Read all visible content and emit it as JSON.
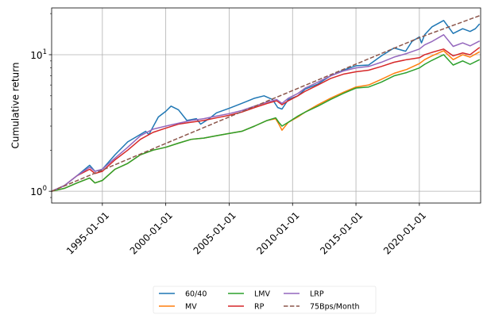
{
  "chart_data": {
    "type": "line",
    "ylabel": "Cumulative return",
    "y_scale": "log",
    "ylim": [
      0.82,
      22.0
    ],
    "xlim": [
      "1991-01-01",
      "2024-11-01"
    ],
    "grid": true,
    "legend_position": "below plot, centered, 3 columns",
    "x_ticks": [
      {
        "date": "1995-01-01",
        "label": "1995-01-01"
      },
      {
        "date": "2000-01-01",
        "label": "2000-01-01"
      },
      {
        "date": "2005-01-01",
        "label": "2005-01-01"
      },
      {
        "date": "2010-01-01",
        "label": "2010-01-01"
      },
      {
        "date": "2015-01-01",
        "label": "2015-01-01"
      },
      {
        "date": "2020-01-01",
        "label": "2020-01-01"
      }
    ],
    "y_ticks": [
      {
        "value": 1,
        "label": "10^0",
        "base": "10",
        "exp": "0"
      },
      {
        "value": 10,
        "label": "10^1",
        "base": "10",
        "exp": "1"
      }
    ],
    "series": [
      {
        "name": "60/40",
        "color": "#1f77b4",
        "dash": "solid",
        "points": [
          [
            "1991-01-01",
            1.0
          ],
          [
            "1992-01-01",
            1.1
          ],
          [
            "1993-01-01",
            1.3
          ],
          [
            "1994-01-01",
            1.55
          ],
          [
            "1994-06-01",
            1.4
          ],
          [
            "1995-01-01",
            1.45
          ],
          [
            "1996-01-01",
            1.85
          ],
          [
            "1997-01-01",
            2.3
          ],
          [
            "1997-09-01",
            2.5
          ],
          [
            "1998-06-01",
            2.75
          ],
          [
            "1998-09-01",
            2.6
          ],
          [
            "1999-06-01",
            3.5
          ],
          [
            "2000-01-01",
            3.85
          ],
          [
            "2000-06-01",
            4.2
          ],
          [
            "2001-01-01",
            3.95
          ],
          [
            "2001-09-01",
            3.3
          ],
          [
            "2002-06-01",
            3.4
          ],
          [
            "2002-10-01",
            3.1
          ],
          [
            "2003-06-01",
            3.4
          ],
          [
            "2004-01-01",
            3.75
          ],
          [
            "2005-01-01",
            4.05
          ],
          [
            "2006-01-01",
            4.4
          ],
          [
            "2007-01-01",
            4.8
          ],
          [
            "2007-10-01",
            5.0
          ],
          [
            "2008-06-01",
            4.7
          ],
          [
            "2008-11-01",
            4.1
          ],
          [
            "2009-03-01",
            4.0
          ],
          [
            "2009-09-01",
            4.7
          ],
          [
            "2010-06-01",
            5.0
          ],
          [
            "2011-01-01",
            5.6
          ],
          [
            "2012-01-01",
            6.1
          ],
          [
            "2013-01-01",
            7.0
          ],
          [
            "2014-01-01",
            7.7
          ],
          [
            "2015-01-01",
            8.3
          ],
          [
            "2016-01-01",
            8.4
          ],
          [
            "2017-01-01",
            9.8
          ],
          [
            "2018-01-01",
            11.2
          ],
          [
            "2018-12-01",
            10.6
          ],
          [
            "2019-06-01",
            12.5
          ],
          [
            "2020-01-01",
            13.5
          ],
          [
            "2020-03-01",
            12.2
          ],
          [
            "2020-06-01",
            14.0
          ],
          [
            "2021-01-01",
            16.0
          ],
          [
            "2021-12-01",
            17.8
          ],
          [
            "2022-09-01",
            14.3
          ],
          [
            "2023-06-01",
            15.5
          ],
          [
            "2024-01-01",
            14.8
          ],
          [
            "2024-06-01",
            15.5
          ],
          [
            "2024-10-01",
            16.8
          ]
        ]
      },
      {
        "name": "MV",
        "color": "#ff7f0e",
        "dash": "solid",
        "points": [
          [
            "1991-01-01",
            1.0
          ],
          [
            "1992-01-01",
            1.05
          ],
          [
            "1993-01-01",
            1.15
          ],
          [
            "1994-01-01",
            1.25
          ],
          [
            "1994-06-01",
            1.15
          ],
          [
            "1995-01-01",
            1.2
          ],
          [
            "1996-01-01",
            1.45
          ],
          [
            "1997-01-01",
            1.6
          ],
          [
            "1998-01-01",
            1.85
          ],
          [
            "1999-01-01",
            2.0
          ],
          [
            "2000-01-01",
            2.1
          ],
          [
            "2001-01-01",
            2.25
          ],
          [
            "2002-01-01",
            2.4
          ],
          [
            "2003-01-01",
            2.45
          ],
          [
            "2004-01-01",
            2.55
          ],
          [
            "2005-01-01",
            2.65
          ],
          [
            "2006-01-01",
            2.75
          ],
          [
            "2007-01-01",
            3.0
          ],
          [
            "2008-01-01",
            3.3
          ],
          [
            "2008-09-01",
            3.4
          ],
          [
            "2008-12-01",
            3.1
          ],
          [
            "2009-03-01",
            2.8
          ],
          [
            "2009-09-01",
            3.2
          ],
          [
            "2010-06-01",
            3.5
          ],
          [
            "2011-01-01",
            3.8
          ],
          [
            "2012-01-01",
            4.3
          ],
          [
            "2013-01-01",
            4.8
          ],
          [
            "2014-01-01",
            5.3
          ],
          [
            "2015-01-01",
            5.8
          ],
          [
            "2016-01-01",
            6.0
          ],
          [
            "2017-01-01",
            6.6
          ],
          [
            "2018-01-01",
            7.3
          ],
          [
            "2019-01-01",
            7.8
          ],
          [
            "2020-01-01",
            8.6
          ],
          [
            "2020-06-01",
            9.2
          ],
          [
            "2021-01-01",
            9.8
          ],
          [
            "2021-12-01",
            10.7
          ],
          [
            "2022-09-01",
            9.2
          ],
          [
            "2023-06-01",
            10.0
          ],
          [
            "2024-01-01",
            9.6
          ],
          [
            "2024-10-01",
            10.5
          ]
        ]
      },
      {
        "name": "LMV",
        "color": "#2ca02c",
        "dash": "solid",
        "points": [
          [
            "1991-01-01",
            1.0
          ],
          [
            "1992-01-01",
            1.05
          ],
          [
            "1993-01-01",
            1.15
          ],
          [
            "1994-01-01",
            1.25
          ],
          [
            "1994-06-01",
            1.15
          ],
          [
            "1995-01-01",
            1.2
          ],
          [
            "1996-01-01",
            1.45
          ],
          [
            "1997-01-01",
            1.6
          ],
          [
            "1998-01-01",
            1.85
          ],
          [
            "1999-01-01",
            2.0
          ],
          [
            "2000-01-01",
            2.1
          ],
          [
            "2001-01-01",
            2.25
          ],
          [
            "2002-01-01",
            2.4
          ],
          [
            "2003-01-01",
            2.45
          ],
          [
            "2004-01-01",
            2.55
          ],
          [
            "2005-01-01",
            2.65
          ],
          [
            "2006-01-01",
            2.75
          ],
          [
            "2007-01-01",
            3.0
          ],
          [
            "2008-01-01",
            3.3
          ],
          [
            "2008-09-01",
            3.45
          ],
          [
            "2008-12-01",
            3.2
          ],
          [
            "2009-03-01",
            3.0
          ],
          [
            "2009-09-01",
            3.2
          ],
          [
            "2010-06-01",
            3.55
          ],
          [
            "2011-01-01",
            3.8
          ],
          [
            "2012-01-01",
            4.2
          ],
          [
            "2013-01-01",
            4.7
          ],
          [
            "2014-01-01",
            5.2
          ],
          [
            "2015-01-01",
            5.7
          ],
          [
            "2016-01-01",
            5.8
          ],
          [
            "2017-01-01",
            6.3
          ],
          [
            "2018-01-01",
            7.0
          ],
          [
            "2019-01-01",
            7.4
          ],
          [
            "2020-01-01",
            8.0
          ],
          [
            "2020-06-01",
            8.5
          ],
          [
            "2021-01-01",
            9.1
          ],
          [
            "2021-12-01",
            10.0
          ],
          [
            "2022-09-01",
            8.4
          ],
          [
            "2023-06-01",
            9.0
          ],
          [
            "2024-01-01",
            8.5
          ],
          [
            "2024-10-01",
            9.2
          ]
        ]
      },
      {
        "name": "RP",
        "color": "#d62728",
        "dash": "solid",
        "points": [
          [
            "1991-01-01",
            1.0
          ],
          [
            "1992-01-01",
            1.1
          ],
          [
            "1993-01-01",
            1.3
          ],
          [
            "1994-01-01",
            1.45
          ],
          [
            "1994-06-01",
            1.35
          ],
          [
            "1995-01-01",
            1.4
          ],
          [
            "1996-01-01",
            1.7
          ],
          [
            "1997-01-01",
            2.0
          ],
          [
            "1998-01-01",
            2.4
          ],
          [
            "1999-01-01",
            2.7
          ],
          [
            "2000-01-01",
            2.9
          ],
          [
            "2001-01-01",
            3.1
          ],
          [
            "2002-01-01",
            3.2
          ],
          [
            "2003-01-01",
            3.3
          ],
          [
            "2004-01-01",
            3.45
          ],
          [
            "2005-01-01",
            3.6
          ],
          [
            "2006-01-01",
            3.8
          ],
          [
            "2007-01-01",
            4.1
          ],
          [
            "2008-01-01",
            4.4
          ],
          [
            "2008-10-01",
            4.6
          ],
          [
            "2009-03-01",
            4.3
          ],
          [
            "2009-09-01",
            4.6
          ],
          [
            "2010-06-01",
            5.0
          ],
          [
            "2011-01-01",
            5.4
          ],
          [
            "2012-01-01",
            6.0
          ],
          [
            "2013-01-01",
            6.7
          ],
          [
            "2014-01-01",
            7.2
          ],
          [
            "2015-01-01",
            7.5
          ],
          [
            "2016-01-01",
            7.7
          ],
          [
            "2017-01-01",
            8.2
          ],
          [
            "2018-01-01",
            8.8
          ],
          [
            "2019-01-01",
            9.2
          ],
          [
            "2020-01-01",
            9.5
          ],
          [
            "2020-06-01",
            10.0
          ],
          [
            "2021-01-01",
            10.4
          ],
          [
            "2021-12-01",
            11.0
          ],
          [
            "2022-09-01",
            9.8
          ],
          [
            "2023-06-01",
            10.3
          ],
          [
            "2024-01-01",
            10.0
          ],
          [
            "2024-10-01",
            11.3
          ]
        ]
      },
      {
        "name": "LRP",
        "color": "#9467bd",
        "dash": "solid",
        "points": [
          [
            "1991-01-01",
            1.0
          ],
          [
            "1992-01-01",
            1.1
          ],
          [
            "1993-01-01",
            1.3
          ],
          [
            "1994-01-01",
            1.5
          ],
          [
            "1994-06-01",
            1.4
          ],
          [
            "1995-01-01",
            1.45
          ],
          [
            "1996-01-01",
            1.75
          ],
          [
            "1997-01-01",
            2.1
          ],
          [
            "1998-01-01",
            2.55
          ],
          [
            "1999-01-01",
            2.85
          ],
          [
            "2000-01-01",
            3.0
          ],
          [
            "2001-01-01",
            3.15
          ],
          [
            "2002-01-01",
            3.3
          ],
          [
            "2003-01-01",
            3.4
          ],
          [
            "2004-01-01",
            3.55
          ],
          [
            "2005-01-01",
            3.7
          ],
          [
            "2006-01-01",
            3.9
          ],
          [
            "2007-01-01",
            4.2
          ],
          [
            "2008-01-01",
            4.5
          ],
          [
            "2008-10-01",
            4.7
          ],
          [
            "2009-03-01",
            4.4
          ],
          [
            "2009-09-01",
            4.8
          ],
          [
            "2010-06-01",
            5.2
          ],
          [
            "2011-01-01",
            5.7
          ],
          [
            "2012-01-01",
            6.3
          ],
          [
            "2013-01-01",
            7.0
          ],
          [
            "2014-01-01",
            7.6
          ],
          [
            "2015-01-01",
            8.0
          ],
          [
            "2016-01-01",
            8.2
          ],
          [
            "2017-01-01",
            8.8
          ],
          [
            "2018-01-01",
            9.6
          ],
          [
            "2019-01-01",
            10.2
          ],
          [
            "2020-01-01",
            11.0
          ],
          [
            "2020-06-01",
            11.8
          ],
          [
            "2021-01-01",
            12.5
          ],
          [
            "2021-12-01",
            14.0
          ],
          [
            "2022-09-01",
            11.5
          ],
          [
            "2023-06-01",
            12.2
          ],
          [
            "2024-01-01",
            11.6
          ],
          [
            "2024-10-01",
            12.6
          ]
        ]
      },
      {
        "name": "75Bps/Month",
        "color": "#8c564b",
        "dash": "dashed",
        "points": [
          [
            "1991-01-01",
            1.0
          ],
          [
            "1995-01-01",
            1.43
          ],
          [
            "2000-01-01",
            2.24
          ],
          [
            "2005-01-01",
            3.5
          ],
          [
            "2010-01-01",
            5.46
          ],
          [
            "2015-01-01",
            8.53
          ],
          [
            "2020-01-01",
            13.32
          ],
          [
            "2024-10-01",
            19.3
          ]
        ]
      }
    ]
  }
}
